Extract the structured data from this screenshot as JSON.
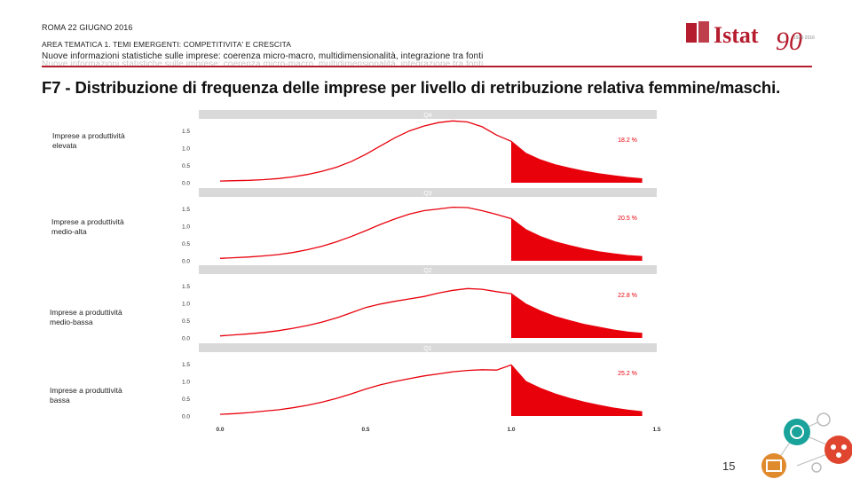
{
  "header": {
    "line1": "ROMA 22 GIUGNO 2016",
    "line2": "AREA TEMATICA 1. TEMI EMERGENTI: COMPETITIVITA' E CRESCITA",
    "line3": "Nuove informazioni statistiche sulle imprese: coerenza micro-macro, multidimensionalità, integrazione tra fonti",
    "line4": "Nuove informazioni statistiche sulle imprese: coerenza micro-macro, multidimensionalità, integrazione tra fonti"
  },
  "logo": {
    "text": "Istat",
    "anniversary": "90",
    "tagline": "1926·2016"
  },
  "slide_title": "F7 - Distribuzione di frequenza delle imprese per livello di retribuzione relativa femmine/maschi.",
  "page_number": "15",
  "colors": {
    "accent": "#b51d2e",
    "fill": "#e8000b",
    "strip": "#d9d9d9"
  },
  "chart_data": {
    "type": "area",
    "title": "F7 - Distribuzione di frequenza delle imprese per livello di retribuzione relativa femmine/maschi.",
    "x_ticks": [
      "0.0",
      "0.5",
      "1.0",
      "1.5"
    ],
    "y_ticks": [
      "0.0",
      "0.5",
      "1.0",
      "1.5"
    ],
    "xlim": [
      0,
      1.5
    ],
    "ylim": [
      0,
      1.9
    ],
    "threshold": 1.0,
    "x": [
      0.0,
      0.05,
      0.1,
      0.15,
      0.2,
      0.25,
      0.3,
      0.35,
      0.4,
      0.45,
      0.5,
      0.55,
      0.6,
      0.65,
      0.7,
      0.75,
      0.8,
      0.85,
      0.9,
      0.95,
      1.0,
      1.05,
      1.1,
      1.15,
      1.2,
      1.25,
      1.3,
      1.35,
      1.4,
      1.45
    ],
    "panels": [
      {
        "strip": "Q4",
        "label": "Imprese a produttività elevata",
        "annotation": "18.2 %",
        "y": [
          0.05,
          0.06,
          0.07,
          0.09,
          0.12,
          0.17,
          0.24,
          0.33,
          0.45,
          0.61,
          0.82,
          1.06,
          1.3,
          1.5,
          1.64,
          1.74,
          1.79,
          1.76,
          1.62,
          1.38,
          1.2,
          0.85,
          0.66,
          0.52,
          0.42,
          0.33,
          0.26,
          0.2,
          0.15,
          0.11
        ]
      },
      {
        "strip": "Q3",
        "label": "Imprese a produttività medio-alta",
        "annotation": "20.5 %",
        "y": [
          0.07,
          0.09,
          0.11,
          0.14,
          0.18,
          0.24,
          0.32,
          0.42,
          0.55,
          0.7,
          0.87,
          1.05,
          1.21,
          1.35,
          1.45,
          1.5,
          1.55,
          1.54,
          1.45,
          1.34,
          1.22,
          0.9,
          0.7,
          0.55,
          0.44,
          0.34,
          0.26,
          0.2,
          0.15,
          0.12
        ]
      },
      {
        "strip": "Q2",
        "label": "Imprese a produttività medio-bassa",
        "annotation": "22.8 %",
        "y": [
          0.06,
          0.09,
          0.12,
          0.16,
          0.21,
          0.28,
          0.36,
          0.46,
          0.58,
          0.73,
          0.88,
          0.98,
          1.06,
          1.13,
          1.2,
          1.3,
          1.38,
          1.43,
          1.41,
          1.34,
          1.28,
          0.98,
          0.78,
          0.62,
          0.5,
          0.39,
          0.31,
          0.23,
          0.17,
          0.13
        ]
      },
      {
        "strip": "Q1",
        "label": "Imprese a produttività bassa",
        "annotation": "25.2 %",
        "y": [
          0.05,
          0.07,
          0.1,
          0.14,
          0.18,
          0.24,
          0.31,
          0.4,
          0.51,
          0.64,
          0.78,
          0.9,
          1.0,
          1.08,
          1.16,
          1.22,
          1.28,
          1.32,
          1.34,
          1.33,
          1.48,
          1.0,
          0.8,
          0.64,
          0.51,
          0.4,
          0.31,
          0.23,
          0.17,
          0.12
        ]
      }
    ]
  }
}
